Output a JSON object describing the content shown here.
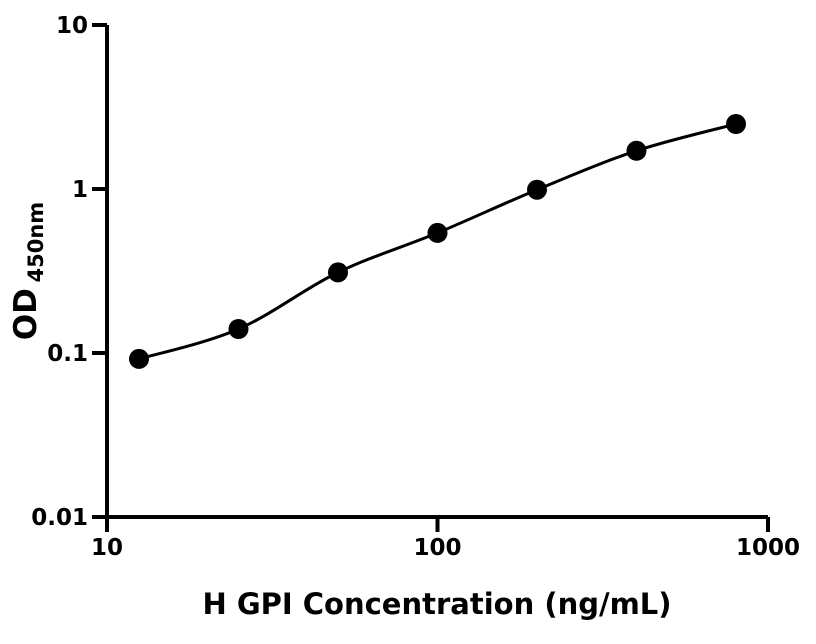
{
  "figure": {
    "kind": "elisa-standard-curve",
    "background": "#ffffff",
    "ink": "#000000"
  },
  "chart_data": {
    "type": "line",
    "subtype": "scatter-with-fitted-curve",
    "title": "",
    "xlabel": "H GPI Concentration (ng/mL)",
    "ylabel_main": "OD",
    "ylabel_sub": "450nm",
    "x_scale": "log",
    "y_scale": "log",
    "xlim": [
      10,
      1000
    ],
    "ylim": [
      0.01,
      10
    ],
    "x_ticks": [
      10,
      100,
      1000
    ],
    "x_tick_labels": [
      "10",
      "100",
      "1000"
    ],
    "y_ticks": [
      0.01,
      0.1,
      1,
      10
    ],
    "y_tick_labels": [
      "0.01",
      "0.1",
      "1",
      "10"
    ],
    "grid": false,
    "legend": "none",
    "x": [
      12.5,
      25,
      50,
      100,
      200,
      400,
      800
    ],
    "y": [
      0.092,
      0.14,
      0.31,
      0.54,
      0.99,
      1.71,
      2.49
    ],
    "marker": "filled-circle",
    "marker_color": "#000000",
    "line_color": "#000000"
  }
}
